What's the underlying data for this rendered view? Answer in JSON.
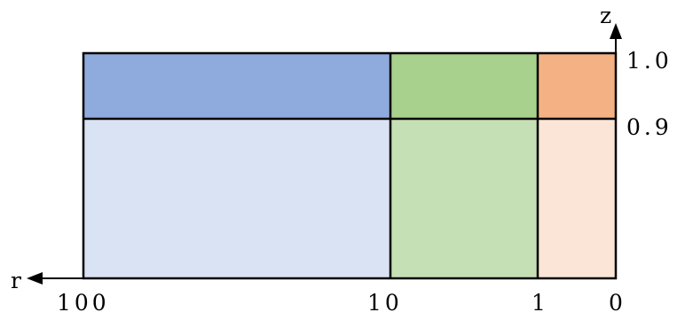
{
  "axes": {
    "r_axis_label": "r",
    "z_axis_label": "z",
    "r_ticks": [
      "100",
      "10",
      "1",
      "0"
    ],
    "z_ticks": [
      "1.0",
      "0.9"
    ]
  },
  "regions": [
    {
      "id": "region-r100-10-top",
      "r_range": [
        "100",
        "10"
      ],
      "z_range": [
        "0.9",
        "1.0"
      ],
      "color": "#8faadc"
    },
    {
      "id": "region-r100-10-bottom",
      "r_range": [
        "100",
        "10"
      ],
      "z_range": [
        "0",
        "0.9"
      ],
      "color": "#dae3f3"
    },
    {
      "id": "region-r10-1-top",
      "r_range": [
        "10",
        "1"
      ],
      "z_range": [
        "0.9",
        "1.0"
      ],
      "color": "#a9d18e"
    },
    {
      "id": "region-r10-1-bottom",
      "r_range": [
        "10",
        "1"
      ],
      "z_range": [
        "0",
        "0.9"
      ],
      "color": "#c5e0b4"
    },
    {
      "id": "region-r1-0-top",
      "r_range": [
        "1",
        "0"
      ],
      "z_range": [
        "0.9",
        "1.0"
      ],
      "color": "#f4b183"
    },
    {
      "id": "region-r1-0-bottom",
      "r_range": [
        "1",
        "0"
      ],
      "z_range": [
        "0",
        "0.9"
      ],
      "color": "#fbe5d6"
    }
  ],
  "stroke_color": "#000000"
}
